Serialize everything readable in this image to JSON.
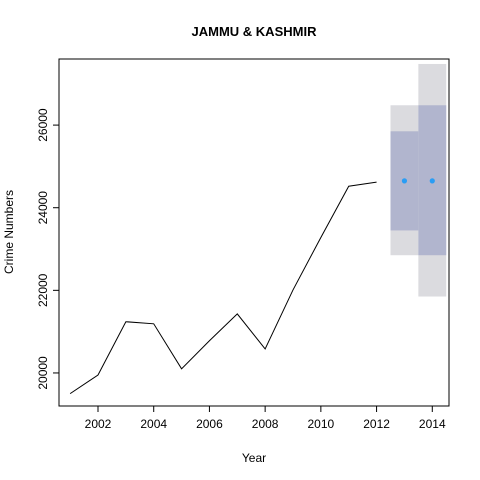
{
  "chart_data": {
    "type": "line",
    "title": "JAMMU & KASHMIR",
    "xlabel": "Year",
    "ylabel": "Crime Numbers",
    "xlim": [
      2000.6,
      2014.6
    ],
    "ylim": [
      19200,
      27600
    ],
    "xticks": [
      2002,
      2004,
      2006,
      2008,
      2010,
      2012,
      2014
    ],
    "yticks": [
      20000,
      22000,
      24000,
      26000
    ],
    "grid": false,
    "series": [
      {
        "x": [
          2001,
          2002,
          2003,
          2004,
          2005,
          2006,
          2007,
          2008,
          2009,
          2010,
          2011,
          2012
        ],
        "values": [
          19500,
          19950,
          21240,
          21190,
          20100,
          20780,
          21430,
          20580,
          22010,
          23280,
          24520,
          24620
        ],
        "color": "#000000"
      }
    ],
    "forecast": {
      "x": [
        2013,
        2014
      ],
      "point": [
        24650,
        24650
      ],
      "lo80": [
        23450,
        22850
      ],
      "hi80": [
        25850,
        26480
      ],
      "lo95": [
        22850,
        21850
      ],
      "hi95": [
        26480,
        27480
      ],
      "point_color": "#2a9df4",
      "band80_color": "#b1b5ce",
      "band95_color": "#dbdbdf"
    }
  }
}
